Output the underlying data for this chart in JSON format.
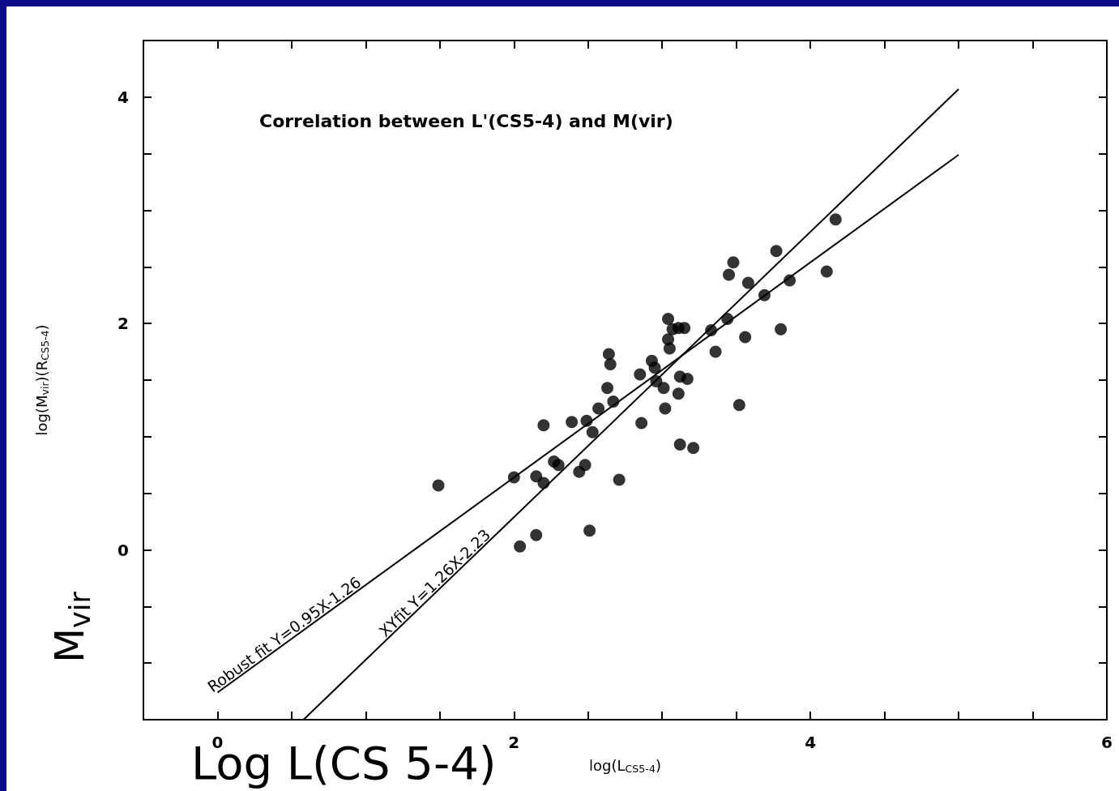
{
  "chart_data": {
    "type": "scatter",
    "title": "Correlation between L'(CS5-4) and M(vir)",
    "xlabel": "log(L$_{CS5-4}$)",
    "ylabel": "log(M$_{vir}$)(R$_{CS5-4}$)",
    "annotations": [
      {
        "text": "Robust fit Y=0.95X-1.26",
        "x": 0.48,
        "y": -0.8
      },
      {
        "text": "XYfit Y=1.26X-2.23",
        "x": 1.5,
        "y": -0.34
      },
      "Log L(CS 5-4)",
      "M$_{vir}$"
    ],
    "xlim": [
      -0.5,
      6
    ],
    "ylim": [
      -1.5,
      4.5
    ],
    "xticks": [
      {
        "value": -0.5,
        "label": null
      },
      0,
      {
        "value": 0.5,
        "label": null
      },
      {
        "value": 1,
        "label": null
      },
      {
        "value": 1.5,
        "label": null
      },
      2,
      {
        "value": 2.5,
        "label": null
      },
      {
        "value": 3,
        "label": null
      },
      {
        "value": 3.5,
        "label": null
      },
      4,
      {
        "value": 4.5,
        "label": null
      },
      {
        "value": 5,
        "label": null
      },
      {
        "value": 5.5,
        "label": null
      },
      6
    ],
    "yticks": [
      {
        "value": -1,
        "label": null
      },
      {
        "value": -0.5,
        "label": null
      },
      0,
      {
        "value": 0.5,
        "label": null
      },
      {
        "value": 1,
        "label": null
      },
      {
        "value": 1.5,
        "label": null
      },
      2,
      {
        "value": 2.5,
        "label": null
      },
      {
        "value": 3,
        "label": null
      },
      {
        "value": 3.5,
        "label": null
      },
      4
    ],
    "grid": false,
    "series": [
      {
        "marker": "circle",
        "color": "#000000",
        "x": [
          1.49,
          2.0,
          2.04,
          2.15,
          2.15,
          2.2,
          2.2,
          2.27,
          2.3,
          2.39,
          2.44,
          2.48,
          2.49,
          2.51,
          2.53,
          2.57,
          2.63,
          2.64,
          2.65,
          2.67,
          2.71,
          2.85,
          2.86,
          2.93,
          2.95,
          2.96,
          3.01,
          3.02,
          3.04,
          3.04,
          3.05,
          3.07,
          3.11,
          3.15,
          3.12,
          3.11,
          3.17,
          3.12,
          3.21,
          3.33,
          3.36,
          3.44,
          3.45,
          3.48,
          3.52,
          3.56,
          3.58,
          3.69,
          3.77,
          3.8,
          3.86,
          4.11,
          4.17
        ],
        "values": [
          0.57,
          0.64,
          0.03,
          0.65,
          0.13,
          1.1,
          0.59,
          0.78,
          0.75,
          1.13,
          0.69,
          0.75,
          1.14,
          0.17,
          1.04,
          1.25,
          1.43,
          1.73,
          1.64,
          1.31,
          0.62,
          1.55,
          1.12,
          1.67,
          1.61,
          1.49,
          1.43,
          1.25,
          2.04,
          1.86,
          1.78,
          1.95,
          1.96,
          1.96,
          1.53,
          1.38,
          1.51,
          0.93,
          0.9,
          1.94,
          1.75,
          2.04,
          2.43,
          2.54,
          1.28,
          1.88,
          2.36,
          2.25,
          2.64,
          1.95,
          2.38,
          2.46,
          2.92
        ]
      },
      {
        "type": "line",
        "color": "#000000",
        "line_style": "solid",
        "x": [
          0,
          5
        ],
        "values": [
          -1.26,
          3.49
        ]
      },
      {
        "type": "line",
        "color": "#000000",
        "line_style": "solid",
        "x": [
          0.58,
          5
        ],
        "values": [
          -1.5,
          4.07
        ]
      }
    ]
  }
}
